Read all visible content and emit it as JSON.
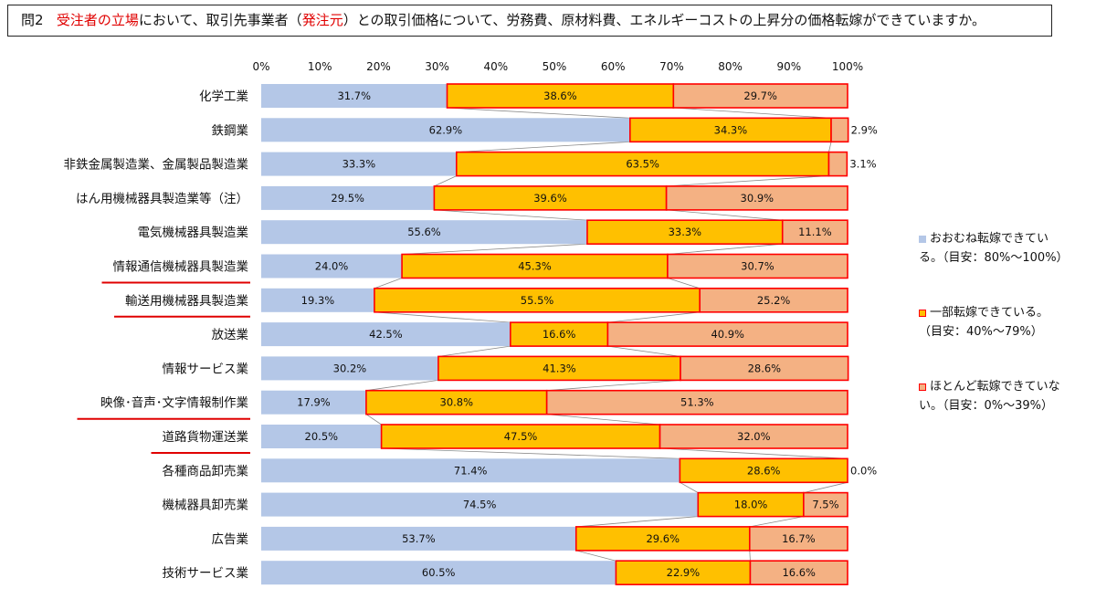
{
  "question": {
    "number": "問2",
    "part1_red": "受注者の立場",
    "part2": "において、取引先事業者（",
    "part3_red": "発注元",
    "part4": "）との取引価格について、労務費、原材料費、エネルギーコストの上昇分の価格転嫁ができていますか。"
  },
  "colors": {
    "full": "#b4c7e7",
    "partial": "#ffc000",
    "none": "#f4b183",
    "highlight_border": "#ff0000",
    "underline": "#e00000"
  },
  "legend": {
    "full_line1": "おおむね転嫁できてい",
    "full_line2": "る。（目安：80%～100%）",
    "partial_line1": "一部転嫁できている。",
    "partial_line2": "（目安：40%～79%）",
    "none_line1": "ほとんど転嫁できていな",
    "none_line2": "い。（目安：0%～39%）"
  },
  "chart_data": {
    "type": "bar",
    "orientation": "horizontal-stacked-100",
    "xlim": [
      0,
      100
    ],
    "x_ticks": [
      "0%",
      "10%",
      "20%",
      "30%",
      "40%",
      "50%",
      "60%",
      "70%",
      "80%",
      "90%",
      "100%"
    ],
    "categories": [
      "化学工業",
      "鉄鋼業",
      "非鉄金属製造業、金属製品製造業",
      "はん用機械器具製造業等（注）",
      "電気機械器具製造業",
      "情報通信機械器具製造業",
      "輸送用機械器具製造業",
      "放送業",
      "情報サービス業",
      "映像･音声･文字情報制作業",
      "道路貨物運送業",
      "各種商品卸売業",
      "機械器具卸売業",
      "広告業",
      "技術サービス業"
    ],
    "underlined": [
      "情報通信機械器具製造業",
      "輸送用機械器具製造業",
      "映像･音声･文字情報制作業",
      "道路貨物運送業"
    ],
    "series": [
      {
        "key": "full",
        "values": [
          31.7,
          62.9,
          33.3,
          29.5,
          55.6,
          24.0,
          19.3,
          42.5,
          30.2,
          17.9,
          20.5,
          71.4,
          74.5,
          53.7,
          60.5
        ],
        "labels": [
          "31.7%",
          "62.9%",
          "33.3%",
          "29.5%",
          "55.6%",
          "24.0%",
          "19.3%",
          "42.5%",
          "30.2%",
          "17.9%",
          "20.5%",
          "71.4%",
          "74.5%",
          "53.7%",
          "60.5%"
        ]
      },
      {
        "key": "partial",
        "values": [
          38.6,
          34.3,
          63.5,
          39.6,
          33.3,
          45.3,
          55.5,
          16.6,
          41.3,
          30.8,
          47.5,
          28.6,
          18.0,
          29.6,
          22.9
        ],
        "labels": [
          "38.6%",
          "34.3%",
          "63.5%",
          "39.6%",
          "33.3%",
          "45.3%",
          "55.5%",
          "16.6%",
          "41.3%",
          "30.8%",
          "47.5%",
          "28.6%",
          "18.0%",
          "29.6%",
          "22.9%"
        ]
      },
      {
        "key": "none",
        "values": [
          29.7,
          2.9,
          3.1,
          30.9,
          11.1,
          30.7,
          25.2,
          40.9,
          28.6,
          51.3,
          32.0,
          0.0,
          7.5,
          16.7,
          16.6
        ],
        "labels": [
          "29.7%",
          "2.9%",
          "3.1%",
          "30.9%",
          "11.1%",
          "30.7%",
          "25.2%",
          "40.9%",
          "28.6%",
          "51.3%",
          "32.0%",
          "0.0%",
          "7.5%",
          "16.7%",
          "16.6%"
        ]
      }
    ]
  }
}
